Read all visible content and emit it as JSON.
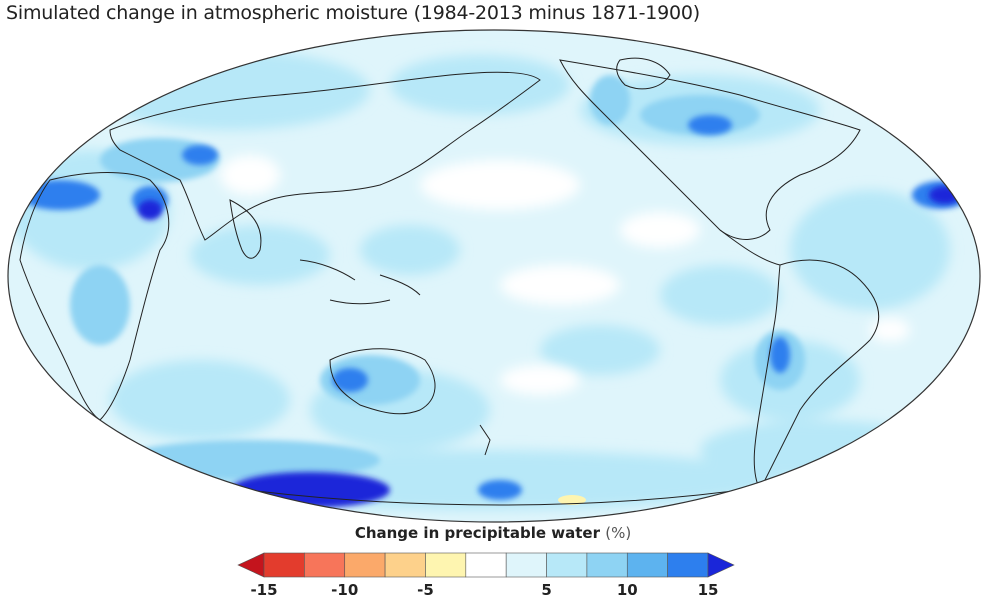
{
  "title": "Simulated change in atmospheric moisture (1984-2013 minus 1871-1900)",
  "legend": {
    "label": "Change in precipitable water",
    "unit": "(%)",
    "bins": [
      {
        "range": "< -15",
        "color": "#c4141d"
      },
      {
        "range": "-15 to -12.5",
        "color": "#e33c2d"
      },
      {
        "range": "-12.5 to -10",
        "color": "#f7755a"
      },
      {
        "range": "-10 to -7.5",
        "color": "#fba96a"
      },
      {
        "range": "-7.5 to -5",
        "color": "#fdd18b"
      },
      {
        "range": "-5 to -2.5",
        "color": "#fef5b0"
      },
      {
        "range": "-2.5 to 2.5",
        "color": "#ffffff"
      },
      {
        "range": "2.5 to 5",
        "color": "#dff5fb"
      },
      {
        "range": "5 to 7.5",
        "color": "#b7e8f8"
      },
      {
        "range": "7.5 to 10",
        "color": "#8ed3f3"
      },
      {
        "range": "10 to 12.5",
        "color": "#5db3ef"
      },
      {
        "range": "12.5 to 15",
        "color": "#2d7fee"
      },
      {
        "range": "> 15",
        "color": "#1a26d9"
      }
    ],
    "ticks": [
      "-15",
      "-10",
      "-5",
      "5",
      "10",
      "15"
    ]
  },
  "map": {
    "projection": "Hammer / Mollweide-style equal-area, Pacific-centered",
    "background_color": "#dff5fb"
  }
}
